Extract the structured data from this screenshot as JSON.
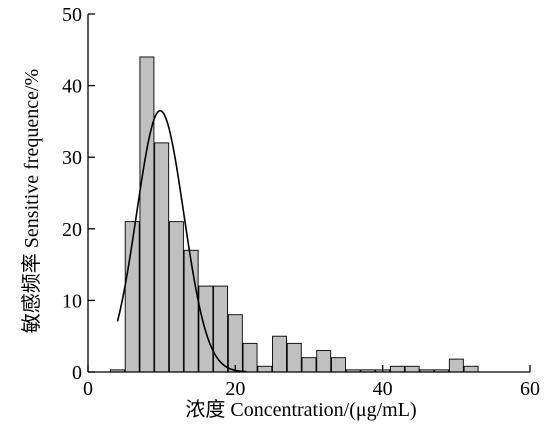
{
  "chart_data": {
    "type": "bar",
    "title": "",
    "xlabel": "浓度 Concentration/(μg/mL)",
    "ylabel": "敏感频率 Sensitive frequence/%",
    "xlim": [
      0,
      60
    ],
    "ylim": [
      0,
      50
    ],
    "xticks": [
      "0",
      "20",
      "40",
      "60"
    ],
    "yticks": [
      "0",
      "10",
      "20",
      "30",
      "40",
      "50"
    ],
    "bin_width": 2,
    "bins": [
      {
        "x": 4,
        "y": 0.3
      },
      {
        "x": 6,
        "y": 21
      },
      {
        "x": 8,
        "y": 44
      },
      {
        "x": 10,
        "y": 32
      },
      {
        "x": 12,
        "y": 21
      },
      {
        "x": 14,
        "y": 17
      },
      {
        "x": 16,
        "y": 12
      },
      {
        "x": 18,
        "y": 12
      },
      {
        "x": 20,
        "y": 8
      },
      {
        "x": 22,
        "y": 4
      },
      {
        "x": 24,
        "y": 0.8
      },
      {
        "x": 26,
        "y": 5
      },
      {
        "x": 28,
        "y": 4
      },
      {
        "x": 30,
        "y": 2
      },
      {
        "x": 32,
        "y": 3
      },
      {
        "x": 34,
        "y": 2
      },
      {
        "x": 36,
        "y": 0.3
      },
      {
        "x": 38,
        "y": 0.3
      },
      {
        "x": 40,
        "y": 0.3
      },
      {
        "x": 42,
        "y": 0.8
      },
      {
        "x": 44,
        "y": 0.8
      },
      {
        "x": 46,
        "y": 0.3
      },
      {
        "x": 48,
        "y": 0.3
      },
      {
        "x": 50,
        "y": 1.8
      },
      {
        "x": 52,
        "y": 0.8
      }
    ],
    "fit_curve": {
      "type": "normal",
      "mean": 9.8,
      "sd": 3.2,
      "peak": 36.5,
      "x_range": [
        4,
        21.5
      ]
    },
    "grid": false,
    "colors": {
      "bar_fill": "#c0c0c0",
      "bar_stroke": "#000000",
      "curve": "#000000"
    }
  }
}
